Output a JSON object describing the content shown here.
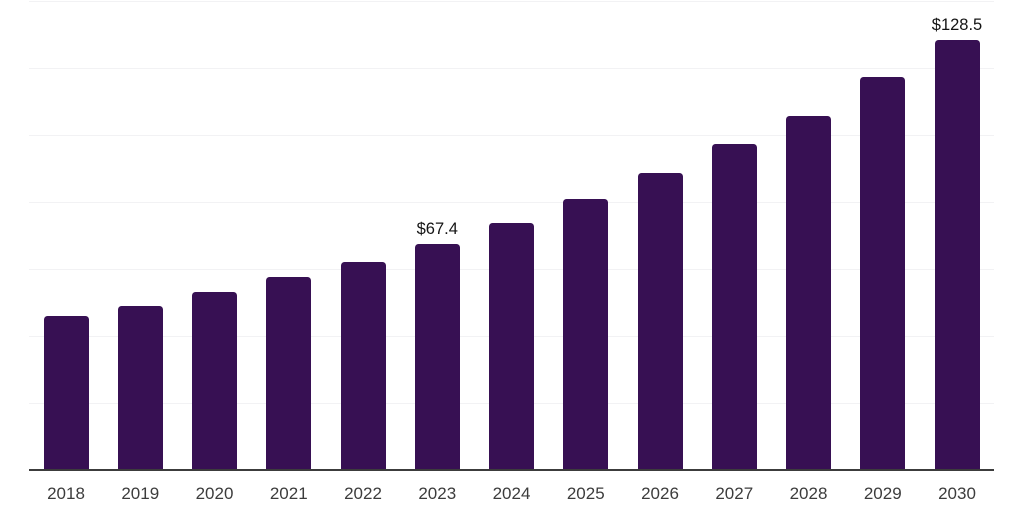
{
  "chart_data": {
    "type": "bar",
    "title": "",
    "xlabel": "",
    "ylabel": "",
    "categories": [
      "2018",
      "2019",
      "2020",
      "2021",
      "2022",
      "2023",
      "2024",
      "2025",
      "2026",
      "2027",
      "2028",
      "2029",
      "2030"
    ],
    "values": [
      46.0,
      49.1,
      53.1,
      57.5,
      62.2,
      67.4,
      73.6,
      81.0,
      88.7,
      97.2,
      105.7,
      117.2,
      128.5
    ],
    "data_labels": {
      "2023": "$67.4",
      "2030": "$128.5"
    },
    "ylim": [
      0,
      140
    ],
    "gridline_step": 20,
    "grid": true,
    "legend": false,
    "y_tick_labels_shown": false,
    "bar_color": "#371053",
    "axis_color": "#3c3c3c",
    "grid_color": "#f2f2f4",
    "tick_label_color": "#3c3c3c",
    "data_label_color": "#141414"
  }
}
